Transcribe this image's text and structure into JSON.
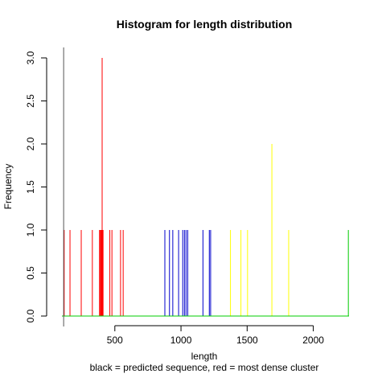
{
  "chart_data": {
    "type": "bar",
    "title": "Histogram for length distribution",
    "xlabel": "length",
    "ylabel": "Frequency",
    "subtitle": "black = predicted sequence, red = most dense cluster",
    "xlim": [
      100,
      2270
    ],
    "ylim": [
      0,
      3
    ],
    "x_ticks": [
      {
        "value": 500,
        "label": "500"
      },
      {
        "value": 1000,
        "label": "1000"
      },
      {
        "value": 1500,
        "label": "1500"
      },
      {
        "value": 2000,
        "label": "2000"
      }
    ],
    "y_ticks": [
      {
        "value": 0.0,
        "label": "0.0"
      },
      {
        "value": 0.5,
        "label": "0.5"
      },
      {
        "value": 1.0,
        "label": "1.0"
      },
      {
        "value": 1.5,
        "label": "1.5"
      },
      {
        "value": 2.0,
        "label": "2.0"
      },
      {
        "value": 2.5,
        "label": "2.5"
      },
      {
        "value": 3.0,
        "label": "3.0"
      }
    ],
    "predicted_length": 113,
    "baseline_color": "#00cc00",
    "series": [
      {
        "color": "#ff0000",
        "points": [
          {
            "x": 117,
            "y": 1
          },
          {
            "x": 161,
            "y": 1
          },
          {
            "x": 246,
            "y": 1
          },
          {
            "x": 330,
            "y": 1
          },
          {
            "x": 384,
            "y": 1
          },
          {
            "x": 390,
            "y": 1
          },
          {
            "x": 395,
            "y": 1
          },
          {
            "x": 398,
            "y": 1
          },
          {
            "x": 404,
            "y": 3
          },
          {
            "x": 407,
            "y": 1
          },
          {
            "x": 411,
            "y": 1
          },
          {
            "x": 462,
            "y": 1
          },
          {
            "x": 478,
            "y": 1
          },
          {
            "x": 543,
            "y": 1
          },
          {
            "x": 563,
            "y": 1
          }
        ]
      },
      {
        "color": "#0000cc",
        "points": [
          {
            "x": 878,
            "y": 1
          },
          {
            "x": 913,
            "y": 1
          },
          {
            "x": 938,
            "y": 1
          },
          {
            "x": 982,
            "y": 1
          },
          {
            "x": 1013,
            "y": 1
          },
          {
            "x": 1026,
            "y": 1
          },
          {
            "x": 1038,
            "y": 1
          },
          {
            "x": 1051,
            "y": 1
          },
          {
            "x": 1166,
            "y": 1
          },
          {
            "x": 1214,
            "y": 1
          },
          {
            "x": 1224,
            "y": 1
          }
        ]
      },
      {
        "color": "#ffff00",
        "points": [
          {
            "x": 1374,
            "y": 1
          },
          {
            "x": 1453,
            "y": 1
          },
          {
            "x": 1503,
            "y": 1
          },
          {
            "x": 1687,
            "y": 2
          },
          {
            "x": 1814,
            "y": 1
          }
        ]
      },
      {
        "color": "#00cc00",
        "points": [
          {
            "x": 2265,
            "y": 1
          }
        ]
      }
    ]
  }
}
